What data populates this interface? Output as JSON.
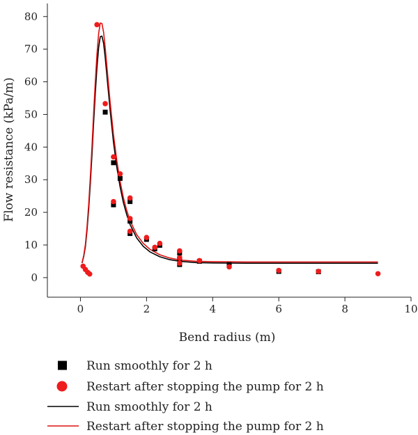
{
  "chart_data": {
    "type": "scatter",
    "title": "",
    "xlabel": "Bend radius (m)",
    "ylabel": "Flow resistance (kPa/m)",
    "xlim": [
      -1,
      10
    ],
    "ylim": [
      -6,
      84
    ],
    "xticks": [
      0,
      2,
      4,
      6,
      8,
      10
    ],
    "yticks": [
      0,
      10,
      20,
      30,
      40,
      50,
      60,
      70,
      80
    ],
    "grid": false,
    "legend_position": "bottom",
    "series": [
      {
        "name": "Run smoothly for 2 h",
        "kind": "scatter",
        "marker": "square",
        "color": "#000000",
        "points": [
          {
            "x": 0.75,
            "y": 50.7
          },
          {
            "x": 1.0,
            "y": 35.2
          },
          {
            "x": 1.0,
            "y": 22.3
          },
          {
            "x": 1.2,
            "y": 30.4
          },
          {
            "x": 1.5,
            "y": 23.3
          },
          {
            "x": 1.5,
            "y": 17.3
          },
          {
            "x": 1.5,
            "y": 13.5
          },
          {
            "x": 2.0,
            "y": 11.7
          },
          {
            "x": 2.25,
            "y": 8.8
          },
          {
            "x": 2.4,
            "y": 9.9
          },
          {
            "x": 3.0,
            "y": 7.5
          },
          {
            "x": 3.0,
            "y": 5.8
          },
          {
            "x": 3.0,
            "y": 4.0
          },
          {
            "x": 3.6,
            "y": 5.0
          },
          {
            "x": 4.5,
            "y": 4.0
          },
          {
            "x": 6.0,
            "y": 1.9
          },
          {
            "x": 7.2,
            "y": 1.8
          }
        ]
      },
      {
        "name": "Restart after stopping the pump for 2 h",
        "kind": "scatter",
        "marker": "circle",
        "color": "#ee1c1c",
        "points": [
          {
            "x": 0.08,
            "y": 3.5
          },
          {
            "x": 0.15,
            "y": 2.5
          },
          {
            "x": 0.22,
            "y": 1.6
          },
          {
            "x": 0.28,
            "y": 1.1
          },
          {
            "x": 0.5,
            "y": 77.5
          },
          {
            "x": 0.75,
            "y": 53.3
          },
          {
            "x": 1.0,
            "y": 37.0
          },
          {
            "x": 1.0,
            "y": 23.3
          },
          {
            "x": 1.2,
            "y": 31.8
          },
          {
            "x": 1.5,
            "y": 24.4
          },
          {
            "x": 1.5,
            "y": 18.1
          },
          {
            "x": 1.5,
            "y": 14.2
          },
          {
            "x": 2.0,
            "y": 12.3
          },
          {
            "x": 2.25,
            "y": 9.3
          },
          {
            "x": 2.4,
            "y": 10.5
          },
          {
            "x": 3.0,
            "y": 8.2
          },
          {
            "x": 3.0,
            "y": 6.0
          },
          {
            "x": 3.0,
            "y": 4.4
          },
          {
            "x": 3.6,
            "y": 5.2
          },
          {
            "x": 4.5,
            "y": 3.3
          },
          {
            "x": 6.0,
            "y": 2.2
          },
          {
            "x": 7.2,
            "y": 1.9
          },
          {
            "x": 9.0,
            "y": 1.2
          }
        ]
      },
      {
        "name": "Run smoothly for 2 h",
        "kind": "line",
        "color": "#000000",
        "points": [
          {
            "x": 0.05,
            "y": 4.5
          },
          {
            "x": 0.1,
            "y": 6.5
          },
          {
            "x": 0.15,
            "y": 9.5
          },
          {
            "x": 0.2,
            "y": 14.5
          },
          {
            "x": 0.25,
            "y": 21.0
          },
          {
            "x": 0.3,
            "y": 29.0
          },
          {
            "x": 0.35,
            "y": 38.0
          },
          {
            "x": 0.4,
            "y": 47.5
          },
          {
            "x": 0.45,
            "y": 56.5
          },
          {
            "x": 0.5,
            "y": 64.5
          },
          {
            "x": 0.55,
            "y": 70.5
          },
          {
            "x": 0.6,
            "y": 73.8
          },
          {
            "x": 0.65,
            "y": 74.0
          },
          {
            "x": 0.7,
            "y": 71.8
          },
          {
            "x": 0.75,
            "y": 67.5
          },
          {
            "x": 0.8,
            "y": 62.0
          },
          {
            "x": 0.9,
            "y": 51.0
          },
          {
            "x": 1.0,
            "y": 41.5
          },
          {
            "x": 1.1,
            "y": 33.8
          },
          {
            "x": 1.2,
            "y": 27.8
          },
          {
            "x": 1.3,
            "y": 23.0
          },
          {
            "x": 1.4,
            "y": 19.3
          },
          {
            "x": 1.5,
            "y": 16.3
          },
          {
            "x": 1.7,
            "y": 12.2
          },
          {
            "x": 1.9,
            "y": 9.6
          },
          {
            "x": 2.1,
            "y": 7.9
          },
          {
            "x": 2.4,
            "y": 6.4
          },
          {
            "x": 2.7,
            "y": 5.5
          },
          {
            "x": 3.0,
            "y": 5.0
          },
          {
            "x": 3.5,
            "y": 4.6
          },
          {
            "x": 4.0,
            "y": 4.5
          },
          {
            "x": 5.0,
            "y": 4.4
          },
          {
            "x": 6.0,
            "y": 4.4
          },
          {
            "x": 7.0,
            "y": 4.4
          },
          {
            "x": 8.0,
            "y": 4.4
          },
          {
            "x": 9.0,
            "y": 4.4
          }
        ]
      },
      {
        "name": "Restart after stopping the pump for 2 h",
        "kind": "line",
        "color": "#dd1111",
        "points": [
          {
            "x": 0.05,
            "y": 4.6
          },
          {
            "x": 0.1,
            "y": 6.8
          },
          {
            "x": 0.15,
            "y": 10.2
          },
          {
            "x": 0.2,
            "y": 15.5
          },
          {
            "x": 0.25,
            "y": 22.5
          },
          {
            "x": 0.3,
            "y": 31.0
          },
          {
            "x": 0.35,
            "y": 40.5
          },
          {
            "x": 0.4,
            "y": 50.5
          },
          {
            "x": 0.45,
            "y": 60.0
          },
          {
            "x": 0.5,
            "y": 68.5
          },
          {
            "x": 0.55,
            "y": 74.8
          },
          {
            "x": 0.6,
            "y": 78.0
          },
          {
            "x": 0.65,
            "y": 77.9
          },
          {
            "x": 0.7,
            "y": 75.2
          },
          {
            "x": 0.75,
            "y": 70.5
          },
          {
            "x": 0.8,
            "y": 64.8
          },
          {
            "x": 0.9,
            "y": 53.5
          },
          {
            "x": 1.0,
            "y": 43.8
          },
          {
            "x": 1.1,
            "y": 35.8
          },
          {
            "x": 1.2,
            "y": 29.5
          },
          {
            "x": 1.3,
            "y": 24.5
          },
          {
            "x": 1.4,
            "y": 20.6
          },
          {
            "x": 1.5,
            "y": 17.5
          },
          {
            "x": 1.7,
            "y": 13.2
          },
          {
            "x": 1.9,
            "y": 10.5
          },
          {
            "x": 2.1,
            "y": 8.7
          },
          {
            "x": 2.4,
            "y": 7.0
          },
          {
            "x": 2.7,
            "y": 6.0
          },
          {
            "x": 3.0,
            "y": 5.4
          },
          {
            "x": 3.5,
            "y": 5.0
          },
          {
            "x": 4.0,
            "y": 4.9
          },
          {
            "x": 5.0,
            "y": 4.8
          },
          {
            "x": 6.0,
            "y": 4.8
          },
          {
            "x": 7.0,
            "y": 4.8
          },
          {
            "x": 8.0,
            "y": 4.8
          },
          {
            "x": 9.0,
            "y": 4.8
          }
        ]
      }
    ]
  }
}
